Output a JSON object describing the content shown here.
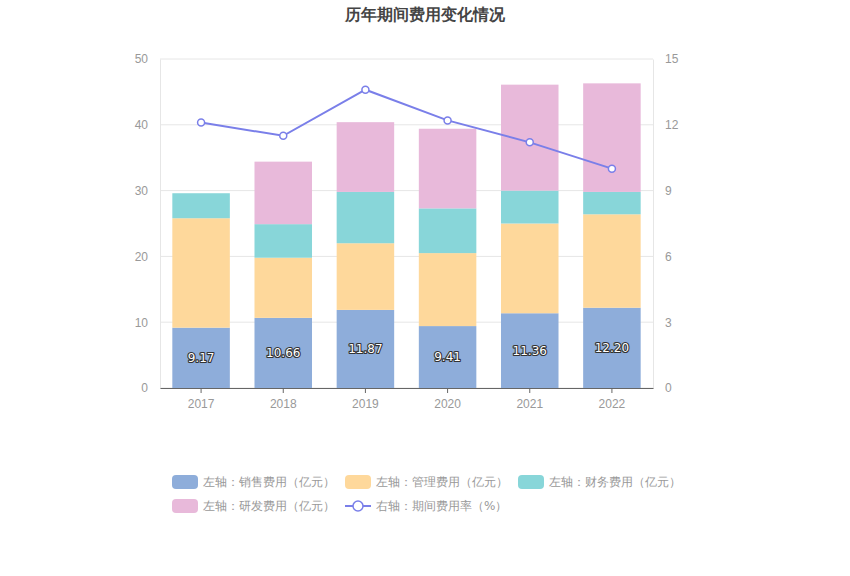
{
  "chart_data": {
    "type": "bar",
    "title": "历年期间费用变化情况",
    "stacked": true,
    "grid": true,
    "legend": "bottom",
    "categories": [
      "2017",
      "2018",
      "2019",
      "2020",
      "2021",
      "2022"
    ],
    "ylim": [
      0,
      50
    ],
    "yticks": [
      0,
      10,
      20,
      30,
      40,
      50
    ],
    "y2lim": [
      0,
      15
    ],
    "y2ticks": [
      0,
      3,
      6,
      9,
      12,
      15
    ],
    "series": [
      {
        "name": "左轴：销售费用（亿元）",
        "color": "#8eadda",
        "data_labels": true,
        "values": [
          9.17,
          10.66,
          11.87,
          9.41,
          11.36,
          12.2
        ],
        "value_labels": [
          "9.17",
          "10.66",
          "11.87",
          "9.41",
          "11.36",
          "12.20"
        ]
      },
      {
        "name": "左轴：管理费用（亿元）",
        "color": "#fed89b",
        "values": [
          16.63,
          9.14,
          10.13,
          11.09,
          13.64,
          14.2
        ]
      },
      {
        "name": "左轴：财务费用（亿元）",
        "color": "#88d6d9",
        "values": [
          3.8,
          5.1,
          7.8,
          6.8,
          5.0,
          3.4
        ]
      },
      {
        "name": "左轴：研发费用（亿元）",
        "color": "#e8b9da",
        "values": [
          0,
          9.5,
          10.6,
          12.1,
          16.1,
          16.5
        ]
      },
      {
        "name": "右轴：期间费用率（%）",
        "color": "#7a7fe9",
        "type": "line",
        "axis": "y2",
        "marker": "circle",
        "values": [
          12.1,
          11.5,
          13.6,
          12.2,
          11.2,
          10.0
        ]
      }
    ]
  }
}
